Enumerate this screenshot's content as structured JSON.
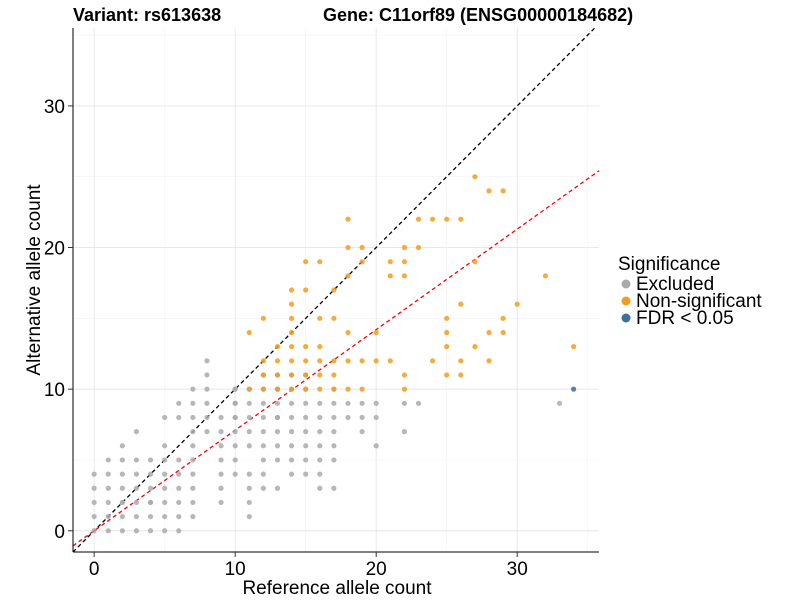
{
  "chart_data": {
    "type": "scatter",
    "title_left": "Variant: rs613638",
    "title_right": "Gene: C11orf89 (ENSG00000184682)",
    "xlabel": "Reference allele count",
    "ylabel": "Alternative allele count",
    "xlim": [
      -1.5,
      35.8
    ],
    "ylim": [
      -1.5,
      35.5
    ],
    "xticks": [
      0,
      10,
      20,
      30
    ],
    "yticks": [
      0,
      10,
      20,
      30
    ],
    "grid": true,
    "legend": {
      "title": "Significance",
      "placement": "right",
      "entries": [
        {
          "label": "Excluded",
          "color": "#aaaaaa"
        },
        {
          "label": "Non-significant",
          "color": "#f39c1f"
        },
        {
          "label": "FDR < 0.05",
          "color": "#3b6fa0"
        }
      ]
    },
    "reference_lines": [
      {
        "slope": 1,
        "intercept": 0,
        "color": "#000000",
        "style": "dashed"
      },
      {
        "slope": 0.71,
        "intercept": 0,
        "color": "#ff0000",
        "style": "dashed"
      }
    ],
    "series": [
      {
        "name": "Excluded",
        "color": "#aaaaaa",
        "x": [
          0,
          0,
          0,
          0,
          0,
          1,
          1,
          1,
          1,
          1,
          1,
          2,
          2,
          2,
          2,
          2,
          2,
          2,
          2,
          3,
          3,
          3,
          3,
          3,
          3,
          3,
          4,
          4,
          4,
          4,
          4,
          4,
          4,
          5,
          5,
          5,
          5,
          5,
          5,
          5,
          5,
          6,
          6,
          6,
          6,
          6,
          6,
          6,
          6,
          7,
          7,
          7,
          7,
          7,
          7,
          7,
          7,
          7,
          7,
          8,
          8,
          8,
          8,
          8,
          8,
          9,
          9,
          9,
          9,
          9,
          9,
          9,
          10,
          10,
          10,
          10,
          10,
          10,
          10,
          10,
          10,
          10,
          11,
          11,
          11,
          11,
          11,
          11,
          11,
          11,
          11,
          12,
          12,
          12,
          12,
          12,
          12,
          12,
          12,
          12,
          13,
          13,
          13,
          13,
          13,
          13,
          13,
          13,
          13,
          13,
          14,
          14,
          14,
          14,
          14,
          14,
          14,
          14,
          15,
          15,
          15,
          15,
          15,
          15,
          15,
          15,
          16,
          16,
          16,
          16,
          16,
          16,
          16,
          17,
          17,
          17,
          17,
          17,
          17,
          17,
          18,
          18,
          19,
          19,
          19,
          20,
          20,
          20,
          22,
          22,
          23,
          33
        ],
        "y": [
          0,
          1,
          2,
          3,
          4,
          0,
          1,
          2,
          3,
          4,
          5,
          0,
          1,
          2,
          3,
          4,
          5,
          6,
          2,
          0,
          1,
          2,
          3,
          4,
          5,
          7,
          0,
          1,
          2,
          3,
          4,
          5,
          2,
          0,
          1,
          2,
          3,
          4,
          5,
          6,
          8,
          0,
          1,
          2,
          3,
          4,
          5,
          8,
          9,
          1,
          2,
          3,
          4,
          5,
          6,
          7,
          8,
          9,
          10,
          7,
          8,
          9,
          10,
          11,
          12,
          2,
          3,
          4,
          5,
          6,
          7,
          8,
          4,
          5,
          6,
          7,
          8,
          9,
          10,
          10,
          9,
          8,
          1,
          2,
          3,
          4,
          6,
          7,
          8,
          9,
          10,
          3,
          4,
          5,
          6,
          7,
          8,
          9,
          10,
          11,
          3,
          6,
          7,
          8,
          9,
          10,
          10,
          11,
          8,
          5,
          4,
          5,
          6,
          7,
          8,
          9,
          10,
          11,
          4,
          5,
          6,
          7,
          8,
          9,
          10,
          11,
          3,
          4,
          5,
          6,
          7,
          8,
          9,
          3,
          5,
          6,
          7,
          8,
          9,
          10,
          8,
          9,
          7,
          8,
          9,
          6,
          8,
          9,
          7,
          9,
          9,
          9
        ]
      },
      {
        "name": "Non-significant",
        "color": "#f39c1f",
        "x": [
          11,
          11,
          12,
          12,
          12,
          12,
          13,
          13,
          13,
          13,
          14,
          14,
          14,
          14,
          14,
          14,
          14,
          14,
          15,
          15,
          15,
          15,
          15,
          15,
          16,
          16,
          16,
          16,
          16,
          16,
          17,
          17,
          17,
          17,
          17,
          18,
          18,
          18,
          18,
          18,
          18,
          19,
          19,
          19,
          19,
          20,
          20,
          21,
          21,
          21,
          22,
          22,
          22,
          22,
          22,
          23,
          23,
          24,
          24,
          25,
          25,
          25,
          25,
          25,
          26,
          26,
          26,
          26,
          27,
          27,
          27,
          28,
          28,
          28,
          29,
          29,
          29,
          30,
          32,
          34
        ],
        "y": [
          10,
          14,
          10,
          11,
          12,
          15,
          10,
          11,
          12,
          13,
          10,
          11,
          12,
          13,
          14,
          15,
          16,
          17,
          10,
          11,
          12,
          13,
          17,
          19,
          10,
          11,
          12,
          13,
          15,
          19,
          10,
          11,
          12,
          15,
          17,
          10,
          12,
          14,
          18,
          20,
          22,
          10,
          12,
          19,
          20,
          12,
          14,
          12,
          18,
          19,
          10,
          11,
          18,
          19,
          20,
          20,
          22,
          12,
          22,
          11,
          13,
          14,
          15,
          22,
          11,
          12,
          16,
          22,
          13,
          19,
          25,
          12,
          14,
          24,
          14,
          15,
          24,
          16,
          18,
          13
        ]
      },
      {
        "name": "FDR < 0.05",
        "color": "#3b6fa0",
        "x": [
          34
        ],
        "y": [
          10
        ]
      }
    ]
  }
}
